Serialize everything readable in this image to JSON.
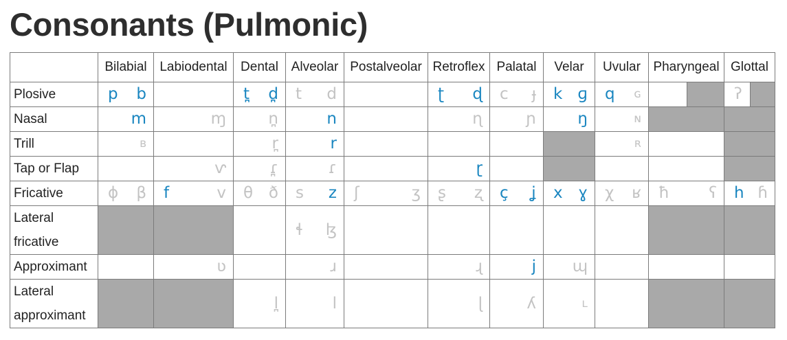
{
  "title": "Consonants (Pulmonic)",
  "columns": [
    "Bilabial",
    "Labiodental",
    "Dental",
    "Alveolar",
    "Postalveolar",
    "Retroflex",
    "Palatal",
    "Velar",
    "Uvular",
    "Pharyngeal",
    "Glottal"
  ],
  "rows": [
    {
      "label": "Plosive",
      "cells": [
        {
          "vl": "p",
          "vd": "b",
          "c": "pp"
        },
        {
          "vl": "",
          "vd": "",
          "c": "none"
        },
        {
          "vl": "t̪",
          "vd": "d̪",
          "c": "pp"
        },
        {
          "vl": "t",
          "vd": "d",
          "c": "oo"
        },
        {
          "vl": "",
          "vd": "",
          "c": "none"
        },
        {
          "vl": "ʈ",
          "vd": "ɖ",
          "c": "pp"
        },
        {
          "vl": "c",
          "vd": "ɟ",
          "c": "oo"
        },
        {
          "vl": "k",
          "vd": "ɡ",
          "c": "pp"
        },
        {
          "vl": "q",
          "vd": "ɢ",
          "c": "po"
        },
        {
          "vl": "",
          "vd": "",
          "c": "halfimp"
        },
        {
          "vl": "ʔ",
          "vd": "",
          "c": "halfimp-o"
        }
      ]
    },
    {
      "label": "Nasal",
      "cells": [
        {
          "vl": "",
          "vd": "m",
          "c": "pp"
        },
        {
          "vl": "",
          "vd": "ɱ",
          "c": "oo"
        },
        {
          "vl": "",
          "vd": "n̪",
          "c": "oo"
        },
        {
          "vl": "",
          "vd": "n",
          "c": "pp"
        },
        {
          "vl": "",
          "vd": "",
          "c": "none"
        },
        {
          "vl": "",
          "vd": "ɳ",
          "c": "oo"
        },
        {
          "vl": "",
          "vd": "ɲ",
          "c": "oo"
        },
        {
          "vl": "",
          "vd": "ŋ",
          "c": "pp"
        },
        {
          "vl": "",
          "vd": "ɴ",
          "c": "oo"
        },
        {
          "vl": "",
          "vd": "",
          "c": "imp"
        },
        {
          "vl": "",
          "vd": "",
          "c": "imp"
        }
      ]
    },
    {
      "label": "Trill",
      "cells": [
        {
          "vl": "",
          "vd": "ʙ",
          "c": "oo"
        },
        {
          "vl": "",
          "vd": "",
          "c": "none"
        },
        {
          "vl": "",
          "vd": "r̪",
          "c": "oo"
        },
        {
          "vl": "",
          "vd": "r",
          "c": "pp"
        },
        {
          "vl": "",
          "vd": "",
          "c": "none"
        },
        {
          "vl": "",
          "vd": "",
          "c": "none"
        },
        {
          "vl": "",
          "vd": "",
          "c": "none"
        },
        {
          "vl": "",
          "vd": "",
          "c": "imp"
        },
        {
          "vl": "",
          "vd": "ʀ",
          "c": "oo"
        },
        {
          "vl": "",
          "vd": "",
          "c": "none"
        },
        {
          "vl": "",
          "vd": "",
          "c": "imp"
        }
      ]
    },
    {
      "label": "Tap or Flap",
      "cells": [
        {
          "vl": "",
          "vd": "",
          "c": "none"
        },
        {
          "vl": "",
          "vd": "ⱱ",
          "c": "oo"
        },
        {
          "vl": "",
          "vd": "ɾ̪",
          "c": "oo"
        },
        {
          "vl": "",
          "vd": "ɾ",
          "c": "oo"
        },
        {
          "vl": "",
          "vd": "",
          "c": "none"
        },
        {
          "vl": "",
          "vd": "ɽ",
          "c": "pp"
        },
        {
          "vl": "",
          "vd": "",
          "c": "none"
        },
        {
          "vl": "",
          "vd": "",
          "c": "imp"
        },
        {
          "vl": "",
          "vd": "",
          "c": "none"
        },
        {
          "vl": "",
          "vd": "",
          "c": "none"
        },
        {
          "vl": "",
          "vd": "",
          "c": "imp"
        }
      ]
    },
    {
      "label": "Fricative",
      "cells": [
        {
          "vl": "ɸ",
          "vd": "β",
          "c": "oo"
        },
        {
          "vl": "f",
          "vd": "v",
          "c": "po"
        },
        {
          "vl": "θ",
          "vd": "ð",
          "c": "oo"
        },
        {
          "vl": "s",
          "vd": "z",
          "c": "op"
        },
        {
          "vl": "ʃ",
          "vd": "ʒ",
          "c": "oo"
        },
        {
          "vl": "ʂ",
          "vd": "ʐ",
          "c": "oo"
        },
        {
          "vl": "ç",
          "vd": "ʝ",
          "c": "pp"
        },
        {
          "vl": "x",
          "vd": "ɣ",
          "c": "pp"
        },
        {
          "vl": "χ",
          "vd": "ʁ",
          "c": "oo"
        },
        {
          "vl": "ħ",
          "vd": "ʕ",
          "c": "oo"
        },
        {
          "vl": "h",
          "vd": "ɦ",
          "c": "po"
        }
      ]
    },
    {
      "label": "Lateral fricative",
      "cells": [
        {
          "vl": "",
          "vd": "",
          "c": "imp"
        },
        {
          "vl": "",
          "vd": "",
          "c": "imp"
        },
        {
          "vl": "",
          "vd": "",
          "c": "none"
        },
        {
          "vl": "ɬ",
          "vd": "ɮ",
          "c": "oo"
        },
        {
          "vl": "",
          "vd": "",
          "c": "none"
        },
        {
          "vl": "",
          "vd": "",
          "c": "none"
        },
        {
          "vl": "",
          "vd": "",
          "c": "none"
        },
        {
          "vl": "",
          "vd": "",
          "c": "none"
        },
        {
          "vl": "",
          "vd": "",
          "c": "none"
        },
        {
          "vl": "",
          "vd": "",
          "c": "imp"
        },
        {
          "vl": "",
          "vd": "",
          "c": "imp"
        }
      ]
    },
    {
      "label": "Approximant",
      "cells": [
        {
          "vl": "",
          "vd": "",
          "c": "none"
        },
        {
          "vl": "",
          "vd": "ʋ",
          "c": "oo"
        },
        {
          "vl": "",
          "vd": "",
          "c": "none"
        },
        {
          "vl": "",
          "vd": "ɹ",
          "c": "oo"
        },
        {
          "vl": "",
          "vd": "",
          "c": "none"
        },
        {
          "vl": "",
          "vd": "ɻ",
          "c": "oo"
        },
        {
          "vl": "",
          "vd": "j",
          "c": "pp"
        },
        {
          "vl": "",
          "vd": "ɰ",
          "c": "oo"
        },
        {
          "vl": "",
          "vd": "",
          "c": "none"
        },
        {
          "vl": "",
          "vd": "",
          "c": "none"
        },
        {
          "vl": "",
          "vd": "",
          "c": "none"
        }
      ]
    },
    {
      "label": "Lateral approximant",
      "cells": [
        {
          "vl": "",
          "vd": "",
          "c": "imp"
        },
        {
          "vl": "",
          "vd": "",
          "c": "imp"
        },
        {
          "vl": "",
          "vd": "l̪",
          "c": "oo"
        },
        {
          "vl": "",
          "vd": "l",
          "c": "oo"
        },
        {
          "vl": "",
          "vd": "",
          "c": "none"
        },
        {
          "vl": "",
          "vd": "ɭ",
          "c": "oo"
        },
        {
          "vl": "",
          "vd": "ʎ",
          "c": "oo"
        },
        {
          "vl": "",
          "vd": "ʟ",
          "c": "oo"
        },
        {
          "vl": "",
          "vd": "",
          "c": "none"
        },
        {
          "vl": "",
          "vd": "",
          "c": "imp"
        },
        {
          "vl": "",
          "vd": "",
          "c": "imp"
        }
      ]
    }
  ],
  "colors": {
    "pulmonic": "#1a86c0",
    "other": "#c3c3c3",
    "impossible": "#a9a9a9"
  }
}
